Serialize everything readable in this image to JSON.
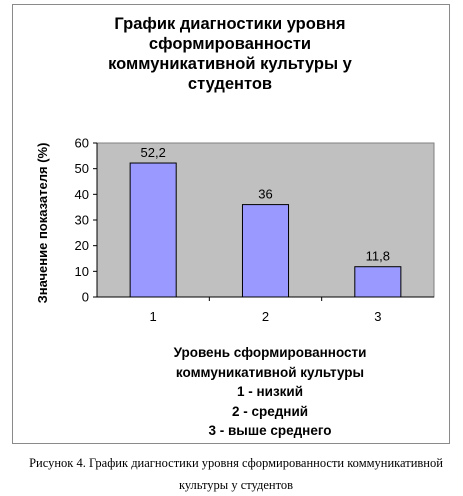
{
  "chart_data": {
    "type": "bar",
    "title_lines": [
      "График диагностики уровня",
      "сформированности",
      "коммуникативной культуры у",
      "студентов"
    ],
    "ylabel": "Значение показателя (%)",
    "categories": [
      "1",
      "2",
      "3"
    ],
    "values": [
      52.2,
      36,
      11.8
    ],
    "data_labels": [
      "52,2",
      "36",
      "11,8"
    ],
    "ylim": [
      0,
      60
    ],
    "yticks": [
      0,
      10,
      20,
      30,
      40,
      50,
      60
    ],
    "grid": false,
    "xlabel_lines": [
      "Уровень сформированности",
      "коммуникативной культуры",
      "1 - низкий",
      "2 - средний",
      "3 - выше среднего"
    ],
    "colors": {
      "bar_fill": "#9999ff",
      "bar_stroke": "#000000",
      "plot_area": "#c0c0c0",
      "axis": "#000000"
    }
  },
  "caption_lines": [
    "Рисунок 4. График диагностики уровня сформированности коммуникативной",
    "культуры у студентов"
  ]
}
